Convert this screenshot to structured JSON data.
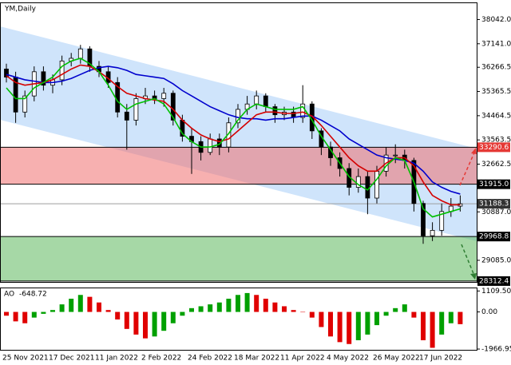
{
  "chart_data": [
    {
      "type": "candlestick",
      "title": "YM,Daily",
      "categories": [
        "25 Nov 2021",
        null,
        null,
        null,
        null,
        "17 Dec 2021",
        null,
        null,
        null,
        null,
        "11 Jan 2022",
        null,
        null,
        null,
        null,
        "2 Feb 2022",
        null,
        null,
        null,
        null,
        "24 Feb 2022",
        null,
        null,
        null,
        null,
        "18 Mar 2022",
        null,
        null,
        null,
        null,
        "11 Apr 2022",
        null,
        null,
        null,
        null,
        "4 May 2022",
        null,
        null,
        null,
        null,
        "26 May 2022",
        null,
        null,
        null,
        null,
        "17 Jun 2022",
        null,
        null,
        null,
        null
      ],
      "open": [
        36200,
        35900,
        34600,
        35200,
        36100,
        35600,
        35800,
        36500,
        36600,
        36950,
        36300,
        36100,
        35700,
        34600,
        34300,
        35100,
        35200,
        35100,
        35300,
        34300,
        33700,
        33500,
        33100,
        33600,
        33300,
        34200,
        34700,
        34900,
        35200,
        34800,
        34500,
        34600,
        34400,
        34900,
        33900,
        33300,
        32900,
        32500,
        31800,
        32200,
        31400,
        32400,
        33000,
        33000,
        32800,
        31200,
        30000,
        30200,
        30900,
        31100
      ],
      "high": [
        36400,
        36100,
        35400,
        36300,
        36300,
        36000,
        36700,
        36800,
        37100,
        37050,
        36500,
        36300,
        35900,
        34900,
        35300,
        35500,
        35400,
        35500,
        35400,
        34500,
        34000,
        33700,
        33800,
        33800,
        34400,
        34900,
        35200,
        35400,
        35300,
        34900,
        34800,
        34800,
        35600,
        35000,
        34000,
        33500,
        33100,
        32700,
        32500,
        32400,
        32600,
        33300,
        33400,
        33200,
        32900,
        31300,
        30500,
        31200,
        31400,
        31500
      ],
      "low": [
        35700,
        34200,
        34400,
        35000,
        35400,
        35300,
        35600,
        36300,
        36400,
        36100,
        35900,
        35500,
        34400,
        33200,
        34100,
        34900,
        34900,
        34800,
        34100,
        33500,
        32300,
        32800,
        33000,
        33000,
        33100,
        34000,
        34500,
        34700,
        34600,
        34200,
        34300,
        34200,
        34200,
        33600,
        33000,
        32600,
        32200,
        31500,
        31600,
        30800,
        31200,
        32200,
        32700,
        32500,
        30900,
        29700,
        29800,
        30000,
        30700,
        30900
      ],
      "close": [
        35900,
        34600,
        35200,
        36100,
        35600,
        35800,
        36500,
        36600,
        36950,
        36300,
        36100,
        35700,
        34600,
        34300,
        35100,
        35200,
        35100,
        35300,
        34300,
        33700,
        33500,
        33100,
        33600,
        33300,
        34200,
        34700,
        34900,
        35200,
        34800,
        34500,
        34600,
        34400,
        34900,
        33900,
        33300,
        32900,
        32500,
        31800,
        32200,
        31400,
        32400,
        33000,
        33000,
        32800,
        31200,
        30000,
        30200,
        30900,
        31100,
        31188.3
      ],
      "up_color": "#ffffff",
      "down_color": "#000000",
      "lines": [
        {
          "color": "#0000cd",
          "values": [
            36000,
            35900,
            35800,
            35750,
            35700,
            35700,
            35750,
            35850,
            36000,
            36150,
            36250,
            36300,
            36250,
            36150,
            36000,
            35950,
            35900,
            35850,
            35650,
            35400,
            35200,
            35000,
            34800,
            34650,
            34500,
            34400,
            34350,
            34350,
            34300,
            34350,
            34350,
            34400,
            34450,
            34450,
            34300,
            34100,
            33900,
            33600,
            33400,
            33200,
            33000,
            32900,
            32850,
            32800,
            32700,
            32400,
            32000,
            31800,
            31650,
            31550
          ]
        },
        {
          "color": "#d40000",
          "values": [
            35950,
            35700,
            35600,
            35650,
            35700,
            35800,
            36000,
            36200,
            36350,
            36300,
            36100,
            35850,
            35550,
            35300,
            35200,
            35100,
            35050,
            35000,
            34700,
            34300,
            34000,
            33750,
            33600,
            33500,
            33600,
            33900,
            34200,
            34500,
            34600,
            34600,
            34550,
            34550,
            34600,
            34450,
            34100,
            33700,
            33300,
            32900,
            32600,
            32400,
            32400,
            32700,
            32900,
            32900,
            32600,
            32000,
            31500,
            31300,
            31150,
            31150
          ]
        },
        {
          "color": "#00c000",
          "values": [
            35500,
            35100,
            35100,
            35500,
            35700,
            35900,
            36300,
            36500,
            36600,
            36400,
            36100,
            35600,
            35000,
            34700,
            34900,
            35000,
            35100,
            34900,
            34400,
            33800,
            33500,
            33300,
            33300,
            33400,
            33800,
            34300,
            34700,
            34900,
            34800,
            34700,
            34700,
            34700,
            34800,
            34300,
            33700,
            33200,
            32700,
            32200,
            31900,
            31700,
            32100,
            32600,
            32900,
            32800,
            32000,
            31000,
            30700,
            30800,
            30900,
            31000
          ]
        }
      ],
      "zones": [
        {
          "color": "#f07070",
          "top": 33290.6,
          "bottom": {
            "value": 31915,
            "label": "31915.0"
          },
          "top_label_color": "#e53935"
        },
        {
          "color": "#5cb85c",
          "top": 29968.8,
          "bottom": 28312.4,
          "top_label_color": "#000000"
        }
      ],
      "current_price": 31188.3,
      "ylim": [
        28280,
        38680
      ],
      "yticks": [
        {
          "value": 38042,
          "label": "38042.0"
        },
        {
          "value": 37141,
          "label": "37141.0"
        },
        36266.5,
        35365.5,
        34464.5,
        33563.5,
        32662.5,
        {
          "value": 30887,
          "label": "30887.0"
        },
        {
          "value": 29085,
          "label": "29085.0"
        }
      ]
    },
    {
      "type": "bar",
      "name": "AO",
      "current": -648.72,
      "values": [
        -200,
        -500,
        -600,
        -300,
        -100,
        100,
        400,
        700,
        900,
        800,
        500,
        100,
        -400,
        -900,
        -1200,
        -1400,
        -1300,
        -1000,
        -600,
        -200,
        200,
        300,
        400,
        500,
        700,
        900,
        1000,
        900,
        700,
        500,
        300,
        100,
        0,
        -300,
        -800,
        -1300,
        -1600,
        -1700,
        -1500,
        -1200,
        -700,
        -200,
        200,
        400,
        -300,
        -1500,
        -1900,
        -1200,
        -600,
        -648.72
      ],
      "up_color": "#00a000",
      "down_color": "#e00000",
      "ylim": [
        -2050,
        1250
      ],
      "yticks": [
        {
          "value": 1109.5,
          "label": "1109.50"
        },
        {
          "value": 0,
          "label": "0.00"
        },
        -1966.95
      ]
    }
  ]
}
